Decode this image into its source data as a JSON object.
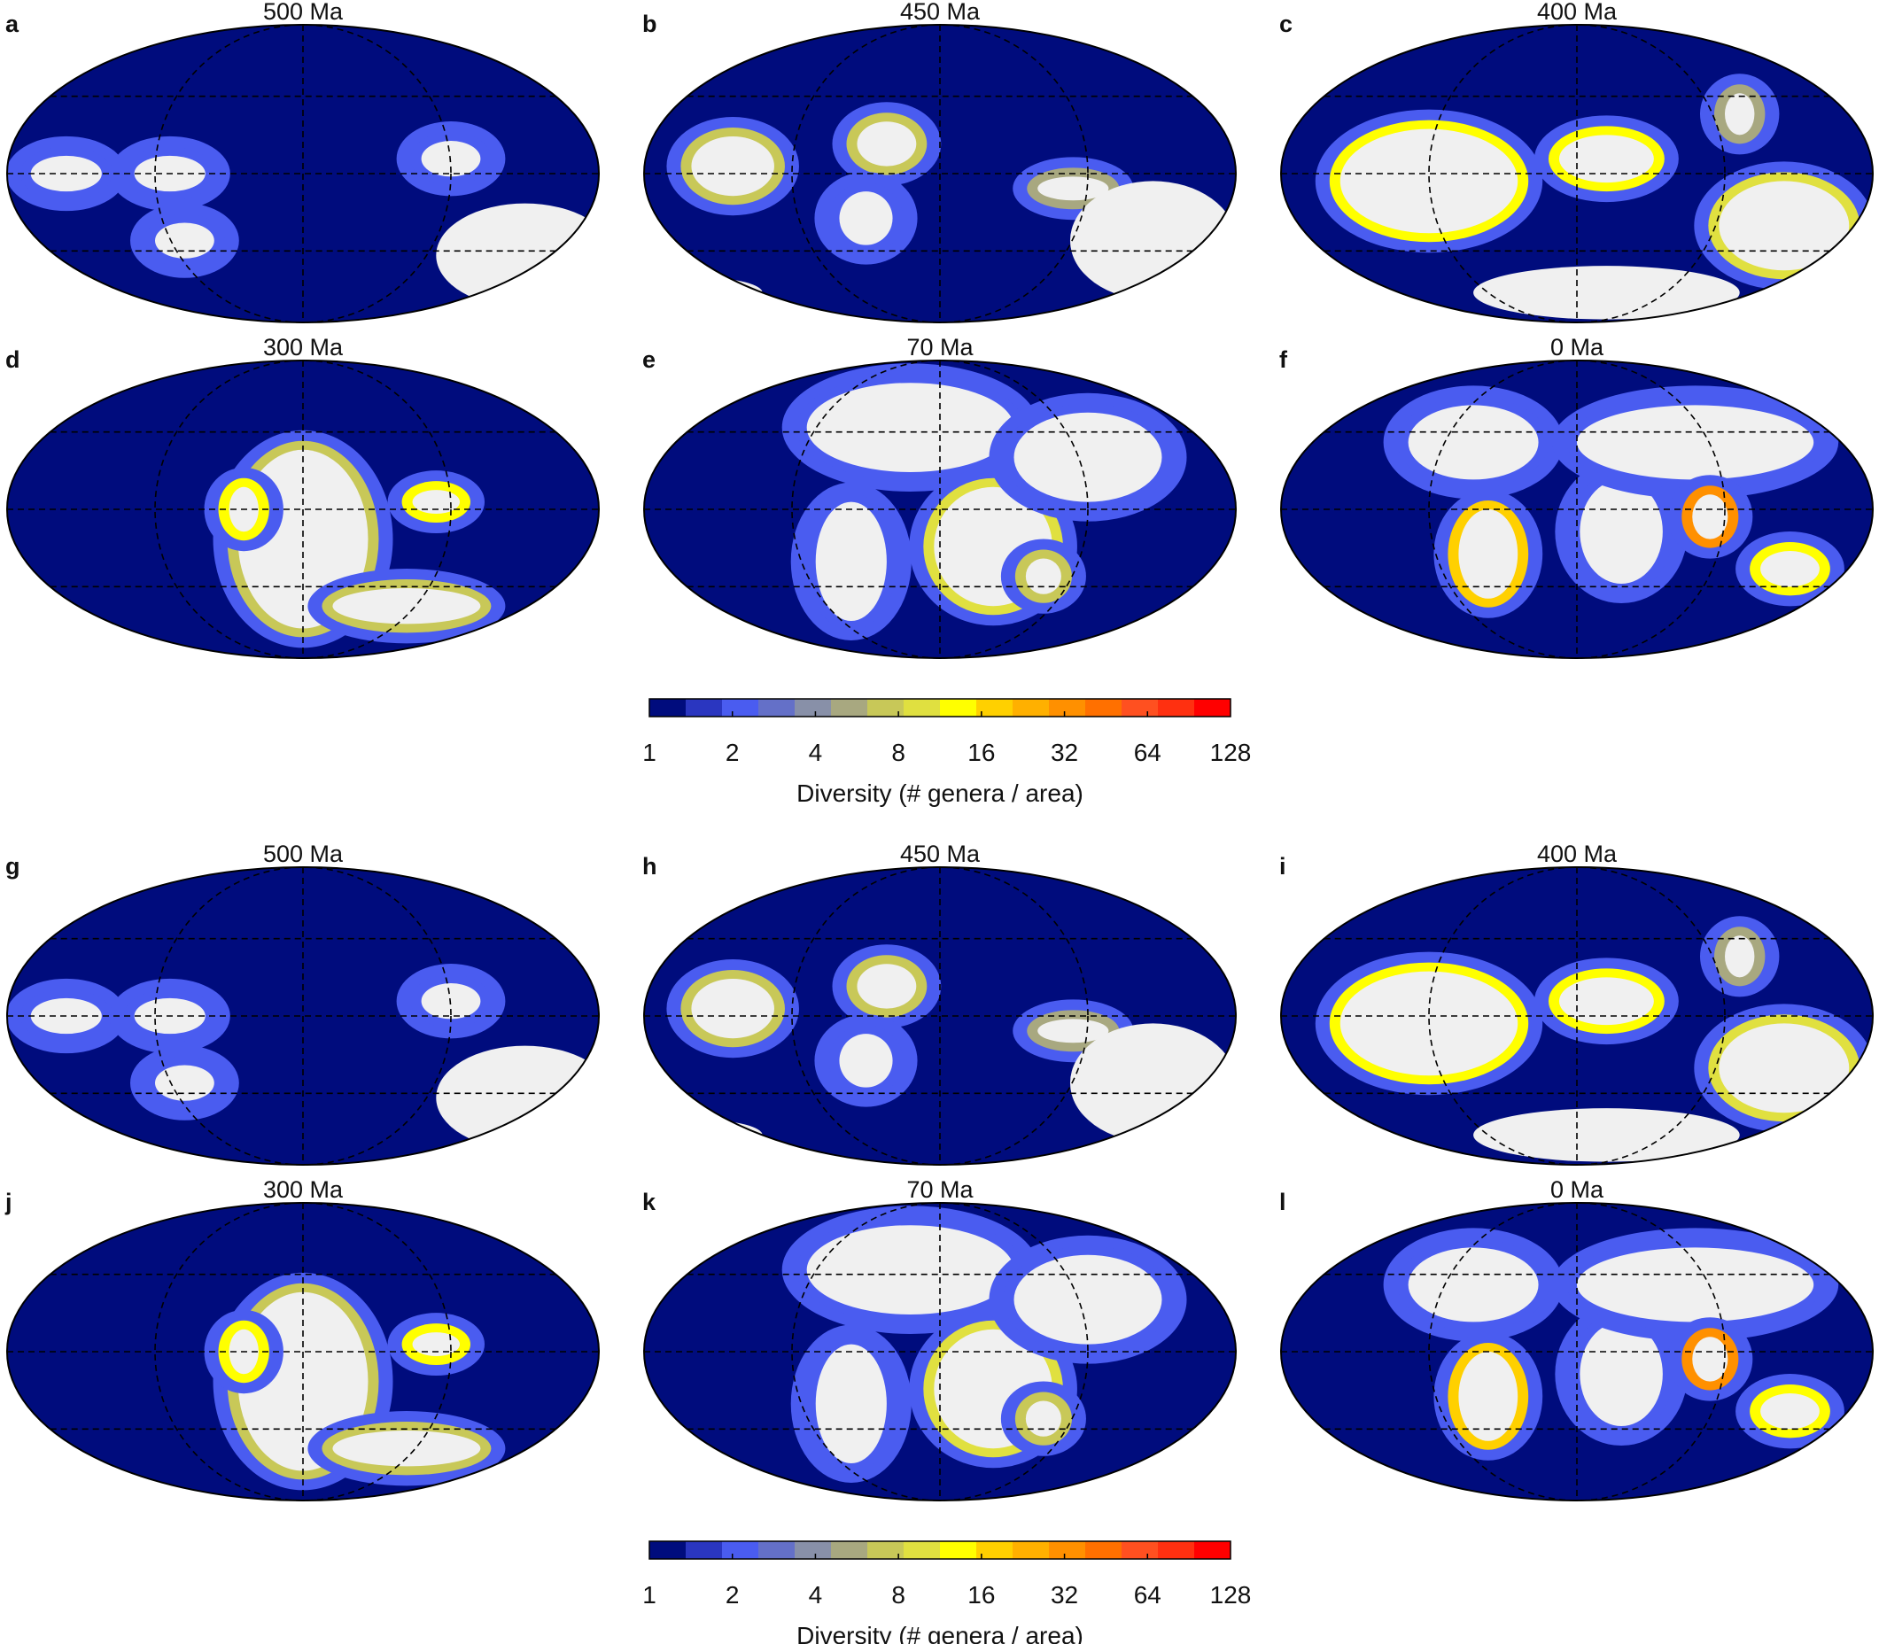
{
  "panels": [
    {
      "letter": "a",
      "age": "500 Ma"
    },
    {
      "letter": "b",
      "age": "450 Ma"
    },
    {
      "letter": "c",
      "age": "400 Ma"
    },
    {
      "letter": "d",
      "age": "300 Ma"
    },
    {
      "letter": "e",
      "age": "70 Ma"
    },
    {
      "letter": "f",
      "age": "0 Ma"
    },
    {
      "letter": "g",
      "age": "500 Ma"
    },
    {
      "letter": "h",
      "age": "450 Ma"
    },
    {
      "letter": "i",
      "age": "400 Ma"
    },
    {
      "letter": "j",
      "age": "300 Ma"
    },
    {
      "letter": "k",
      "age": "70 Ma"
    },
    {
      "letter": "l",
      "age": "0 Ma"
    }
  ],
  "colorbar": {
    "ticks": [
      "1",
      "2",
      "4",
      "8",
      "16",
      "32",
      "64",
      "128"
    ],
    "label": "Diversity (# genera / area)",
    "scale": "log2",
    "range": [
      1,
      128
    ],
    "colors": [
      "#000c7d",
      "#2a36c0",
      "#4a5cf0",
      "#6470c8",
      "#8890a8",
      "#a8a880",
      "#c8c858",
      "#e0e040",
      "#ffff00",
      "#ffd000",
      "#ffb000",
      "#ff9000",
      "#ff7000",
      "#ff5020",
      "#ff3010",
      "#ff0000"
    ]
  },
  "colors": {
    "ocean": "#000c7d",
    "land": "#f0f0f0"
  }
}
